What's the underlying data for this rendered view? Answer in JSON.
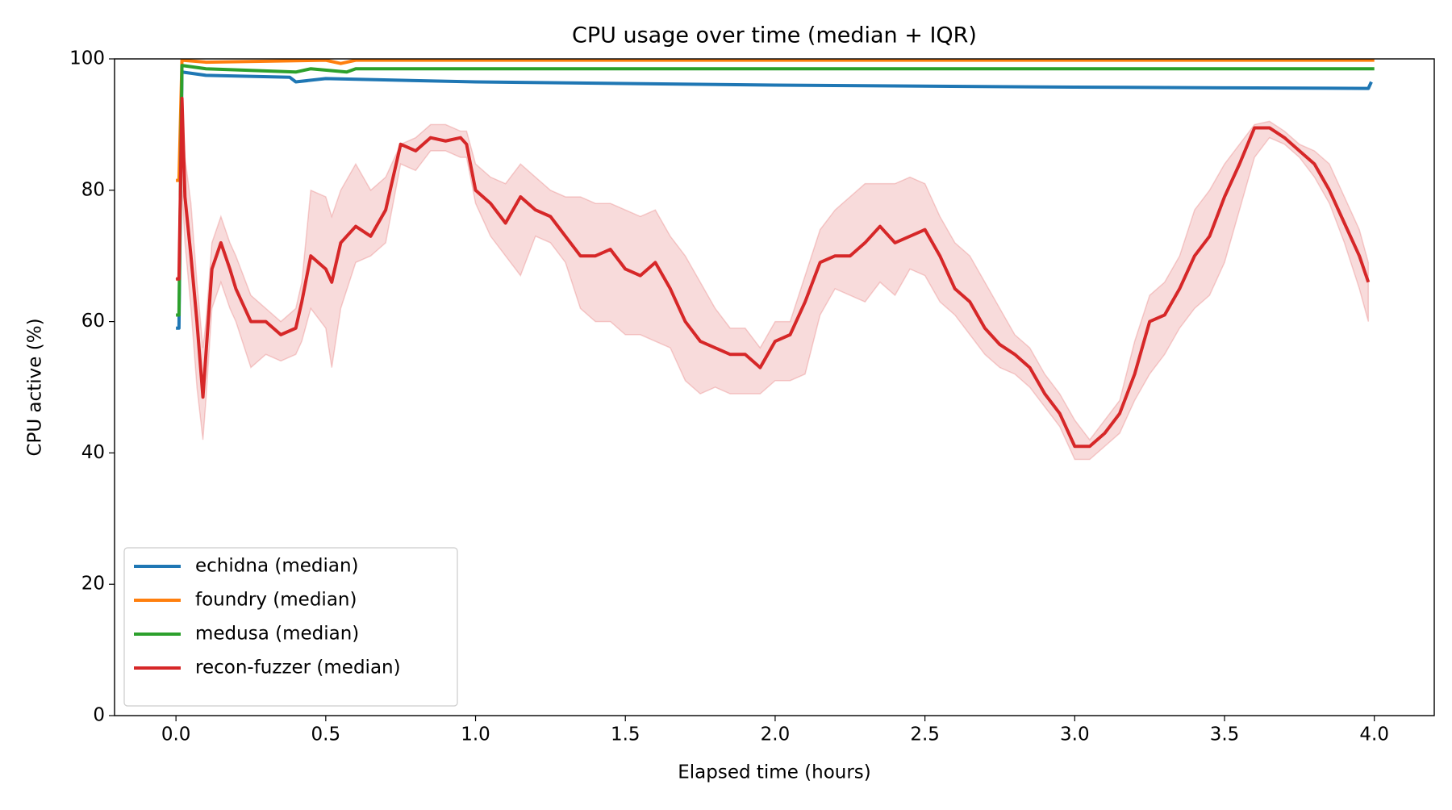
{
  "chart_data": {
    "type": "line",
    "title": "CPU usage over time (median + IQR)",
    "x_label": "Elapsed time (hours)",
    "y_label": "CPU active (%)",
    "xlim": [
      -0.205,
      4.2
    ],
    "ylim": [
      0,
      100
    ],
    "xticks": [
      {
        "value": 0,
        "label": "0.0"
      },
      0.5,
      {
        "value": 1,
        "label": "1.0"
      },
      1.5,
      {
        "value": 2,
        "label": "2.0"
      },
      2.5,
      {
        "value": 3,
        "label": "3.0"
      },
      3.5,
      {
        "value": 4,
        "label": "4.0"
      }
    ],
    "yticks": [
      0,
      20,
      40,
      60,
      80,
      100
    ],
    "grid": false,
    "legend": "lower left",
    "series": [
      {
        "name": "echidna (median)",
        "color": "#1f77b4",
        "x": [
          0,
          0.01,
          0.02,
          0.1,
          0.38,
          0.4,
          0.5,
          1,
          2,
          3,
          3.5,
          3.98,
          3.99
        ],
        "values": [
          59,
          59,
          98,
          97.5,
          97.2,
          96.5,
          97,
          96.5,
          96,
          95.7,
          95.6,
          95.5,
          96.5
        ]
      },
      {
        "name": "foundry (median)",
        "color": "#ff7f0e",
        "x": [
          0,
          0.01,
          0.02,
          0.1,
          0.5,
          0.55,
          0.6,
          1,
          4
        ],
        "values": [
          81.5,
          81.5,
          99.8,
          99.5,
          99.8,
          99.3,
          99.8,
          99.8,
          99.8
        ]
      },
      {
        "name": "medusa (median)",
        "color": "#2ca02c",
        "x": [
          0,
          0.01,
          0.02,
          0.1,
          0.4,
          0.45,
          0.57,
          0.6,
          1,
          4
        ],
        "values": [
          61,
          61,
          99,
          98.5,
          98,
          98.5,
          98,
          98.5,
          98.5,
          98.5
        ]
      },
      {
        "name": "recon-fuzzer (median)",
        "color": "#d62728",
        "x": [
          0,
          0.01,
          0.02,
          0.03,
          0.05,
          0.07,
          0.09,
          0.1,
          0.12,
          0.15,
          0.18,
          0.2,
          0.25,
          0.3,
          0.35,
          0.4,
          0.42,
          0.45,
          0.5,
          0.52,
          0.55,
          0.6,
          0.65,
          0.7,
          0.75,
          0.8,
          0.85,
          0.9,
          0.95,
          0.97,
          1.0,
          1.05,
          1.1,
          1.15,
          1.2,
          1.25,
          1.3,
          1.35,
          1.4,
          1.45,
          1.5,
          1.55,
          1.6,
          1.65,
          1.7,
          1.75,
          1.8,
          1.85,
          1.9,
          1.95,
          2.0,
          2.05,
          2.1,
          2.15,
          2.2,
          2.25,
          2.3,
          2.35,
          2.4,
          2.45,
          2.5,
          2.55,
          2.6,
          2.65,
          2.7,
          2.75,
          2.8,
          2.85,
          2.9,
          2.95,
          3.0,
          3.05,
          3.1,
          3.15,
          3.2,
          3.25,
          3.3,
          3.35,
          3.4,
          3.45,
          3.5,
          3.55,
          3.6,
          3.65,
          3.7,
          3.75,
          3.8,
          3.85,
          3.9,
          3.95,
          3.98
        ],
        "values": [
          66.5,
          66.5,
          94,
          79,
          70,
          60,
          48.5,
          55,
          68,
          72,
          68,
          65,
          60,
          60,
          58,
          59,
          63,
          70,
          68,
          66,
          72,
          74.5,
          73,
          77,
          87,
          86,
          88,
          87.5,
          88,
          87,
          80,
          78,
          75,
          79,
          77,
          76,
          73,
          70,
          70,
          71,
          68,
          67,
          69,
          65,
          60,
          57,
          56,
          55,
          55,
          53,
          57,
          58,
          63,
          69,
          70,
          70,
          72,
          74.5,
          72,
          73,
          74,
          70,
          65,
          63,
          59,
          56.5,
          55,
          53,
          49,
          46,
          41,
          41,
          43,
          46,
          52,
          60,
          61,
          65,
          70,
          73,
          79,
          84,
          89.5,
          89.5,
          88,
          86,
          84,
          80,
          75,
          70,
          66
        ],
        "iqr_low": [
          66.5,
          66,
          80,
          72,
          62,
          50,
          42,
          48,
          62,
          66,
          62,
          60,
          53,
          55,
          54,
          55,
          57,
          62,
          59,
          53,
          62,
          69,
          70,
          72,
          84,
          83,
          86,
          86,
          85,
          85,
          78,
          73,
          70,
          67,
          73,
          72,
          69,
          62,
          60,
          60,
          58,
          58,
          57,
          56,
          51,
          49,
          50,
          49,
          49,
          49,
          51,
          51,
          52,
          61,
          65,
          64,
          63,
          66,
          64,
          68,
          67,
          63,
          61,
          58,
          55,
          53,
          52,
          50,
          47,
          44,
          39,
          39,
          41,
          43,
          48,
          52,
          55,
          59,
          62,
          64,
          69,
          77,
          85,
          88,
          87,
          85,
          82,
          78,
          72,
          65,
          60
        ],
        "iqr_high": [
          66.5,
          67,
          94,
          85,
          78,
          66,
          56,
          60,
          72,
          76,
          72,
          70,
          64,
          62,
          60,
          62,
          66,
          80,
          79,
          76,
          80,
          84,
          80,
          82,
          87,
          88,
          90,
          90,
          89,
          89,
          84,
          82,
          81,
          84,
          82,
          80,
          79,
          79,
          78,
          78,
          77,
          76,
          77,
          73,
          70,
          66,
          62,
          59,
          59,
          56,
          60,
          60,
          67,
          74,
          77,
          79,
          81,
          81,
          81,
          82,
          81,
          76,
          72,
          70,
          66,
          62,
          58,
          56,
          52,
          49,
          45,
          42,
          45,
          48,
          57,
          64,
          66,
          70,
          77,
          80,
          84,
          87,
          90,
          90.5,
          89,
          87,
          86,
          84,
          79,
          74,
          69
        ]
      }
    ]
  }
}
